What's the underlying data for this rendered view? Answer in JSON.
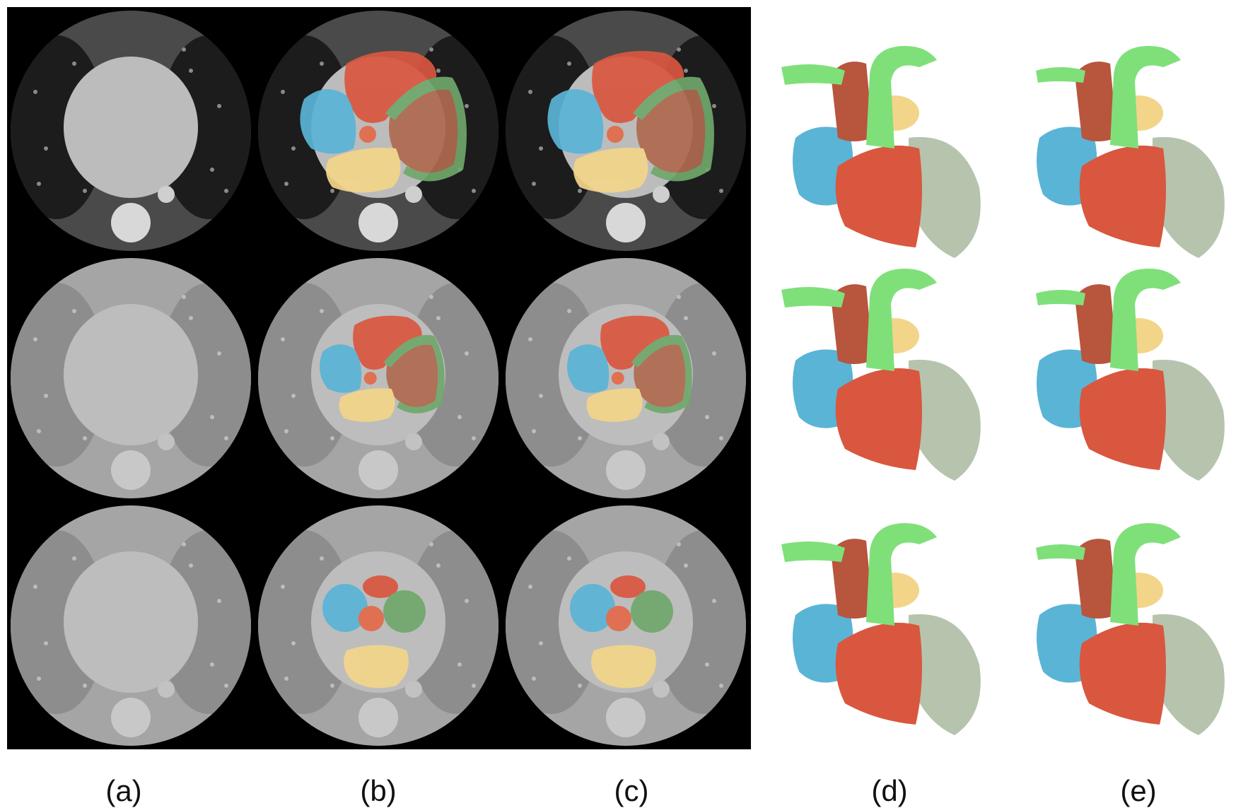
{
  "figure": {
    "column_labels": [
      "(a)",
      "(b)",
      "(c)",
      "(d)",
      "(e)"
    ],
    "structure_colors": {
      "right_atrium": "#5ab4d6",
      "right_ventricle": "#d9573f",
      "left_ventricle": "#b06a50",
      "myocardium": "#6fa86b",
      "left_atrium": "#f3d58a",
      "aorta": "#e26a4a",
      "aorta_3d": "#7fe07a",
      "pulmonary_artery_3d": "#b8553d"
    },
    "rows": [
      {
        "contrast": "high",
        "layout": "four-chamber"
      },
      {
        "contrast": "low",
        "layout": "four-chamber"
      },
      {
        "contrast": "low",
        "layout": "base"
      }
    ]
  }
}
